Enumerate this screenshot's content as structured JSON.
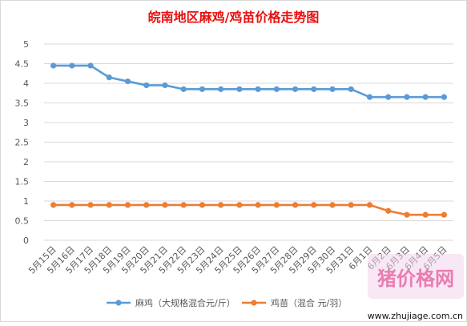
{
  "chart_data": {
    "type": "line",
    "title": "皖南地区麻鸡/鸡苗价格走势图",
    "xlabel": "",
    "ylabel": "",
    "ylim": [
      0,
      5
    ],
    "yticks": [
      "0",
      "0.5",
      "1",
      "1.5",
      "2",
      "2.5",
      "3",
      "3.5",
      "4",
      "4.5",
      "5"
    ],
    "grid": true,
    "legend_position": "bottom",
    "categories": [
      "5月15日",
      "5月16日",
      "5月17日",
      "5月18日",
      "5月19日",
      "5月20日",
      "5月21日",
      "5月22日",
      "5月23日",
      "5月24日",
      "5月25日",
      "5月26日",
      "5月27日",
      "5月28日",
      "5月29日",
      "5月30日",
      "5月31日",
      "6月1日",
      "6月2日",
      "6月3日",
      "6月4日",
      "6月5日"
    ],
    "series": [
      {
        "name": "麻鸡（大规格混合元/斤）",
        "color": "#5b9bd5",
        "values": [
          4.45,
          4.45,
          4.45,
          4.15,
          4.05,
          3.95,
          3.95,
          3.85,
          3.85,
          3.85,
          3.85,
          3.85,
          3.85,
          3.85,
          3.85,
          3.85,
          3.85,
          3.65,
          3.65,
          3.65,
          3.65,
          3.65
        ]
      },
      {
        "name": "鸡苗（混合 元/羽）",
        "color": "#ed7d31",
        "values": [
          0.9,
          0.9,
          0.9,
          0.9,
          0.9,
          0.9,
          0.9,
          0.9,
          0.9,
          0.9,
          0.9,
          0.9,
          0.9,
          0.9,
          0.9,
          0.9,
          0.9,
          0.9,
          0.75,
          0.65,
          0.65,
          0.65
        ]
      }
    ]
  },
  "watermark": {
    "name": "猪价格网",
    "url": "www.zhujiage.com.cn"
  }
}
